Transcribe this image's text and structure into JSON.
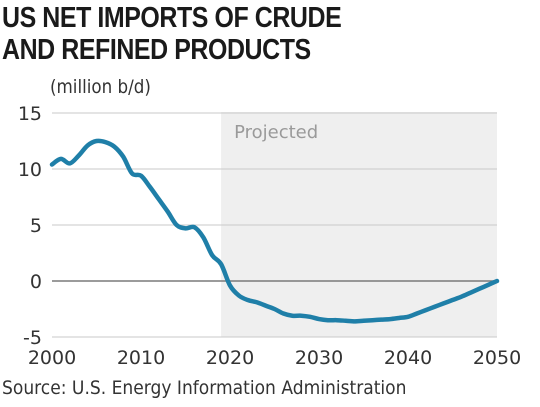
{
  "chart_data": {
    "type": "line",
    "title_lines": [
      "US NET IMPORTS OF CRUDE",
      "AND REFINED PRODUCTS"
    ],
    "unit_label": "(million b/d)",
    "source": "Source: U.S. Energy Information Administration",
    "xlim": [
      2000,
      2050
    ],
    "ylim": [
      -5,
      15
    ],
    "x_ticks": [
      2000,
      2010,
      2020,
      2030,
      2040,
      2050
    ],
    "y_ticks": [
      15,
      10,
      5,
      0,
      -5
    ],
    "projected_region": {
      "label": "Projected",
      "from": 2019,
      "to": 2050
    },
    "grid": "horizontal",
    "line_color": "#1f7fa8",
    "series": [
      {
        "x": [
          2000,
          2001,
          2002,
          2003,
          2004,
          2005,
          2006,
          2007,
          2008,
          2009,
          2010,
          2011,
          2012,
          2013,
          2014,
          2015,
          2016,
          2017,
          2018,
          2019,
          2020,
          2021,
          2022,
          2023,
          2024,
          2025,
          2026,
          2027,
          2028,
          2029,
          2030,
          2031,
          2032,
          2033,
          2034,
          2035,
          2036,
          2037,
          2038,
          2039,
          2040,
          2041,
          2042,
          2043,
          2044,
          2045,
          2046,
          2047,
          2048,
          2049,
          2050
        ],
        "values": [
          10.4,
          10.9,
          10.5,
          11.2,
          12.1,
          12.5,
          12.4,
          12.0,
          11.1,
          9.6,
          9.4,
          8.4,
          7.3,
          6.2,
          5.0,
          4.7,
          4.8,
          3.9,
          2.3,
          1.5,
          -0.4,
          -1.3,
          -1.7,
          -1.9,
          -2.2,
          -2.5,
          -2.9,
          -3.1,
          -3.1,
          -3.2,
          -3.4,
          -3.5,
          -3.5,
          -3.55,
          -3.6,
          -3.55,
          -3.5,
          -3.45,
          -3.4,
          -3.3,
          -3.2,
          -2.9,
          -2.6,
          -2.3,
          -2.0,
          -1.7,
          -1.4,
          -1.05,
          -0.7,
          -0.35,
          0.0
        ]
      }
    ]
  }
}
